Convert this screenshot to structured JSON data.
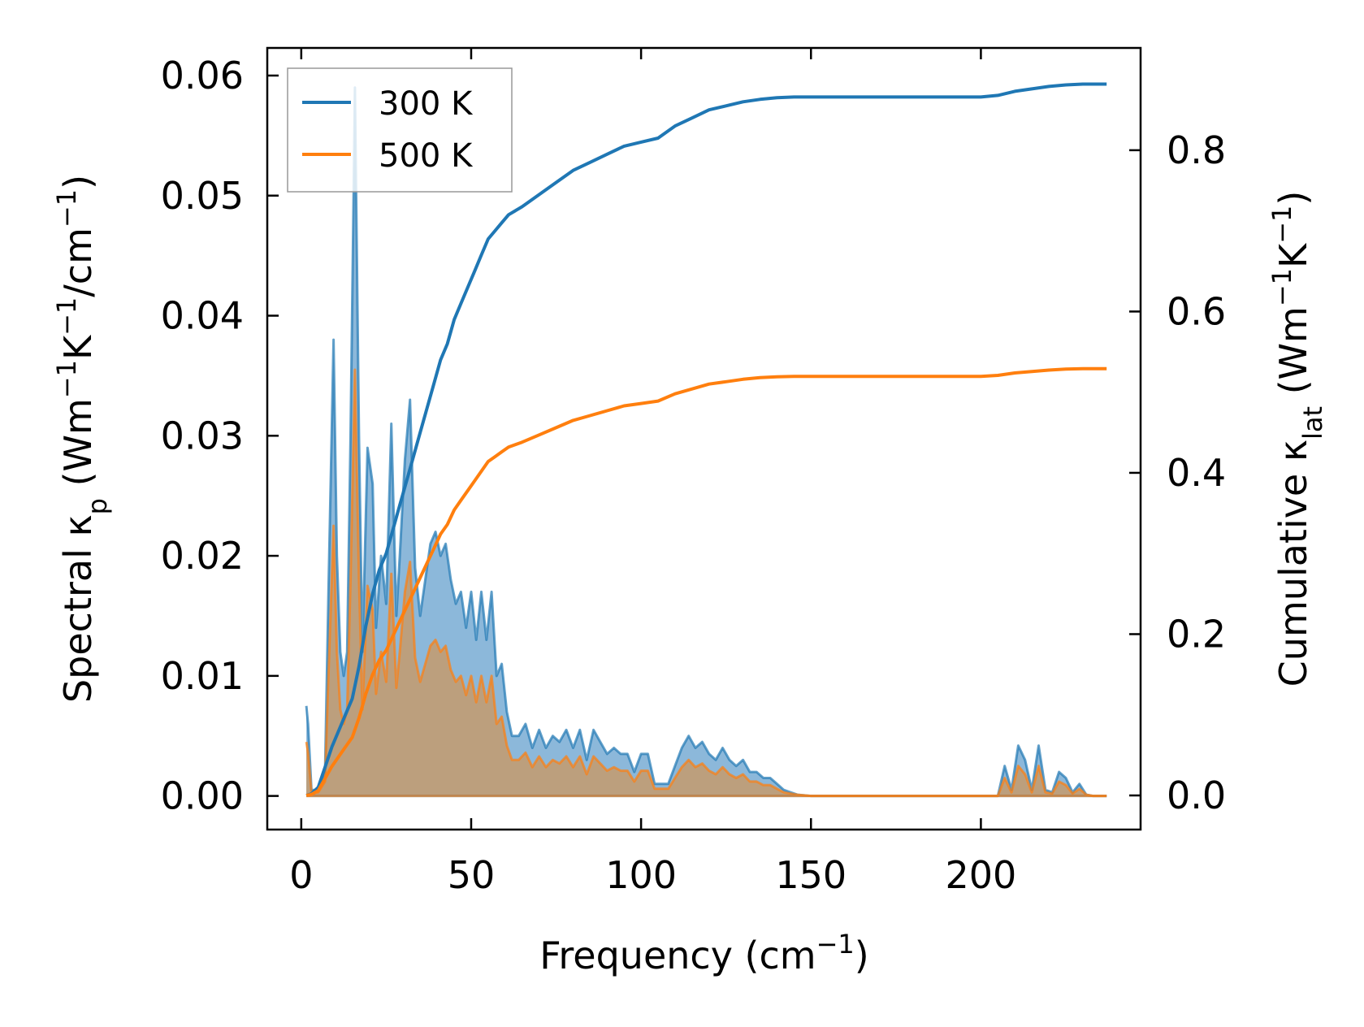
{
  "chart_data": {
    "type": "area",
    "title": "",
    "xlabel": {
      "base": "Frequency (cm",
      "sup": "−1",
      "tail": ")"
    },
    "ylabel_left": {
      "parts": [
        {
          "t": "Spectral κ"
        },
        {
          "t": "p",
          "sub": true
        },
        {
          "t": " (Wm"
        },
        {
          "t": "−1",
          "sup": true
        },
        {
          "t": "K"
        },
        {
          "t": "−1",
          "sup": true
        },
        {
          "t": "/cm"
        },
        {
          "t": "−1",
          "sup": true
        },
        {
          "t": ")"
        }
      ]
    },
    "ylabel_right": {
      "parts": [
        {
          "t": "Cumulative κ"
        },
        {
          "t": "lat",
          "sub": true
        },
        {
          "t": " (Wm"
        },
        {
          "t": "−1",
          "sup": true
        },
        {
          "t": "K"
        },
        {
          "t": "−1",
          "sup": true
        },
        {
          "t": ")"
        }
      ]
    },
    "xlim": [
      -10,
      247
    ],
    "ylim_left": [
      -0.0028,
      0.0623
    ],
    "ylim_right": [
      -0.0423,
      0.9268
    ],
    "xticks": [
      0,
      50,
      100,
      150,
      200
    ],
    "xtick_labels": [
      "0",
      "50",
      "100",
      "150",
      "200"
    ],
    "yticks_left": [
      0.0,
      0.01,
      0.02,
      0.03,
      0.04,
      0.05,
      0.06
    ],
    "ytick_labels_left": [
      "0.00",
      "0.01",
      "0.02",
      "0.03",
      "0.04",
      "0.05",
      "0.06"
    ],
    "yticks_right": [
      0.0,
      0.2,
      0.4,
      0.6,
      0.8
    ],
    "ytick_labels_right": [
      "0.0",
      "0.2",
      "0.4",
      "0.6",
      "0.8"
    ],
    "legend": {
      "placement": "top-left",
      "entries": [
        "300 K",
        "500 K"
      ]
    },
    "colors": {
      "s300": "#1f77b4",
      "s500": "#ff7f0e",
      "fill300": "#7fb0d6",
      "fill500": "#c49a6c"
    },
    "spectral": [
      {
        "name": "300 K",
        "x": [
          1.5,
          2,
          3,
          5,
          7,
          8,
          9.5,
          10.5,
          11.5,
          12.5,
          13.5,
          14.5,
          15.8,
          17,
          18,
          19.5,
          21,
          22,
          23.5,
          25,
          26.5,
          28,
          29,
          30.5,
          32,
          33.5,
          35,
          36.5,
          38,
          39.5,
          41,
          42.5,
          44,
          45.5,
          47,
          48.5,
          50,
          51.5,
          53,
          54.5,
          56,
          57.5,
          59,
          60.5,
          62,
          64,
          66,
          68,
          70,
          72,
          74,
          76,
          78,
          80,
          82,
          84,
          86,
          88,
          90,
          92,
          94,
          96,
          98,
          100,
          102,
          104,
          106,
          108,
          110,
          112,
          114,
          116,
          118,
          120,
          122,
          124,
          126,
          128,
          130,
          132,
          134,
          136,
          138,
          140,
          142,
          144,
          146,
          150,
          155,
          160,
          180,
          200,
          205,
          207,
          209,
          211,
          213,
          215,
          217,
          219,
          221,
          223,
          225,
          227,
          229,
          231,
          233,
          235,
          237
        ],
        "y": [
          0.0075,
          0.006,
          0.0005,
          0.0005,
          0.002,
          0.017,
          0.038,
          0.02,
          0.012,
          0.01,
          0.012,
          0.03,
          0.059,
          0.03,
          0.012,
          0.029,
          0.026,
          0.014,
          0.02,
          0.016,
          0.031,
          0.015,
          0.02,
          0.028,
          0.033,
          0.019,
          0.015,
          0.018,
          0.021,
          0.022,
          0.02,
          0.021,
          0.018,
          0.016,
          0.017,
          0.014,
          0.017,
          0.013,
          0.017,
          0.013,
          0.017,
          0.01,
          0.011,
          0.007,
          0.005,
          0.005,
          0.006,
          0.004,
          0.0055,
          0.004,
          0.005,
          0.0045,
          0.0055,
          0.004,
          0.0055,
          0.003,
          0.0055,
          0.0045,
          0.0035,
          0.004,
          0.0035,
          0.0035,
          0.002,
          0.0035,
          0.0035,
          0.001,
          0.001,
          0.001,
          0.0025,
          0.004,
          0.005,
          0.004,
          0.0045,
          0.0035,
          0.003,
          0.004,
          0.003,
          0.0025,
          0.003,
          0.002,
          0.002,
          0.0015,
          0.0015,
          0.001,
          0.0005,
          0.0003,
          0.0001,
          0.0,
          0.0,
          0.0,
          0.0,
          0.0,
          0.0,
          0.0025,
          0.0005,
          0.0042,
          0.003,
          0.0005,
          0.0042,
          0.0005,
          0.0003,
          0.002,
          0.0015,
          0.0003,
          0.001,
          0.0001,
          0.0,
          0.0,
          0.0
        ]
      },
      {
        "name": "500 K",
        "x": [
          1.5,
          2,
          3,
          5,
          7,
          8,
          9.5,
          10.5,
          11.5,
          12.5,
          13.5,
          14.5,
          15.8,
          17,
          18,
          19.5,
          21,
          22,
          23.5,
          25,
          26.5,
          28,
          29,
          30.5,
          32,
          33.5,
          35,
          36.5,
          38,
          39.5,
          41,
          42.5,
          44,
          45.5,
          47,
          48.5,
          50,
          51.5,
          53,
          54.5,
          56,
          57.5,
          59,
          60.5,
          62,
          64,
          66,
          68,
          70,
          72,
          74,
          76,
          78,
          80,
          82,
          84,
          86,
          88,
          90,
          92,
          94,
          96,
          98,
          100,
          102,
          104,
          106,
          108,
          110,
          112,
          114,
          116,
          118,
          120,
          122,
          124,
          126,
          128,
          130,
          132,
          134,
          136,
          138,
          140,
          142,
          144,
          146,
          150,
          155,
          160,
          180,
          200,
          205,
          207,
          209,
          211,
          213,
          215,
          217,
          219,
          221,
          223,
          225,
          227,
          229,
          231,
          233,
          235,
          237
        ],
        "y": [
          0.0045,
          0.0036,
          0.0003,
          0.0003,
          0.0012,
          0.01,
          0.0225,
          0.012,
          0.0072,
          0.006,
          0.0072,
          0.018,
          0.0355,
          0.018,
          0.0072,
          0.0175,
          0.0155,
          0.0085,
          0.012,
          0.0095,
          0.0185,
          0.009,
          0.012,
          0.017,
          0.0195,
          0.0115,
          0.0095,
          0.011,
          0.0125,
          0.013,
          0.012,
          0.0125,
          0.0105,
          0.0095,
          0.01,
          0.0084,
          0.01,
          0.0078,
          0.01,
          0.0078,
          0.01,
          0.006,
          0.0066,
          0.0042,
          0.003,
          0.003,
          0.0036,
          0.0024,
          0.0033,
          0.0024,
          0.003,
          0.0027,
          0.0033,
          0.0024,
          0.0033,
          0.0018,
          0.0033,
          0.0027,
          0.0021,
          0.0024,
          0.0021,
          0.0021,
          0.0012,
          0.0021,
          0.0021,
          0.0006,
          0.0006,
          0.0006,
          0.0015,
          0.0024,
          0.003,
          0.0024,
          0.0027,
          0.0021,
          0.0018,
          0.0024,
          0.0018,
          0.0015,
          0.0018,
          0.0012,
          0.0012,
          0.0009,
          0.0009,
          0.0006,
          0.0003,
          0.0002,
          0.0001,
          0.0,
          0.0,
          0.0,
          0.0,
          0.0,
          0.0,
          0.0015,
          0.0003,
          0.0025,
          0.0018,
          0.0003,
          0.0025,
          0.0003,
          0.0002,
          0.0012,
          0.0009,
          0.0002,
          0.0006,
          0.0001,
          0.0,
          0.0,
          0.0
        ]
      }
    ],
    "cumulative": [
      {
        "name": "300 K",
        "x": [
          1.5,
          3,
          5,
          7,
          9,
          11,
          13,
          15,
          17,
          19,
          21,
          23,
          25,
          27,
          29,
          31,
          33,
          35,
          37,
          39,
          41,
          43,
          45,
          47,
          49,
          51,
          53,
          55,
          57,
          59,
          61,
          65,
          70,
          75,
          80,
          85,
          90,
          95,
          100,
          105,
          110,
          115,
          120,
          125,
          130,
          135,
          140,
          145,
          150,
          200,
          205,
          210,
          215,
          220,
          225,
          230,
          237
        ],
        "y": [
          0.0,
          0.002,
          0.01,
          0.035,
          0.06,
          0.08,
          0.1,
          0.12,
          0.16,
          0.21,
          0.25,
          0.28,
          0.3,
          0.33,
          0.36,
          0.39,
          0.42,
          0.45,
          0.48,
          0.51,
          0.54,
          0.56,
          0.59,
          0.61,
          0.63,
          0.65,
          0.67,
          0.69,
          0.7,
          0.71,
          0.72,
          0.73,
          0.745,
          0.76,
          0.775,
          0.785,
          0.795,
          0.805,
          0.81,
          0.815,
          0.83,
          0.84,
          0.85,
          0.855,
          0.86,
          0.863,
          0.865,
          0.866,
          0.866,
          0.866,
          0.868,
          0.873,
          0.876,
          0.879,
          0.881,
          0.882,
          0.882
        ]
      },
      {
        "name": "500 K",
        "x": [
          1.5,
          3,
          5,
          7,
          9,
          11,
          13,
          15,
          17,
          19,
          21,
          23,
          25,
          27,
          29,
          31,
          33,
          35,
          37,
          39,
          41,
          43,
          45,
          47,
          49,
          51,
          53,
          55,
          57,
          59,
          61,
          65,
          70,
          75,
          80,
          85,
          90,
          95,
          100,
          105,
          110,
          115,
          120,
          125,
          130,
          135,
          140,
          145,
          150,
          200,
          205,
          210,
          215,
          220,
          225,
          230,
          237
        ],
        "y": [
          0.0,
          0.0012,
          0.006,
          0.021,
          0.036,
          0.048,
          0.06,
          0.072,
          0.096,
          0.126,
          0.15,
          0.168,
          0.18,
          0.198,
          0.216,
          0.234,
          0.252,
          0.27,
          0.288,
          0.306,
          0.324,
          0.336,
          0.354,
          0.366,
          0.378,
          0.39,
          0.402,
          0.414,
          0.42,
          0.426,
          0.432,
          0.438,
          0.447,
          0.456,
          0.465,
          0.471,
          0.477,
          0.483,
          0.486,
          0.489,
          0.498,
          0.504,
          0.51,
          0.513,
          0.516,
          0.518,
          0.519,
          0.5196,
          0.5196,
          0.5196,
          0.5208,
          0.5238,
          0.5256,
          0.5274,
          0.5286,
          0.5292,
          0.5292
        ]
      }
    ]
  }
}
